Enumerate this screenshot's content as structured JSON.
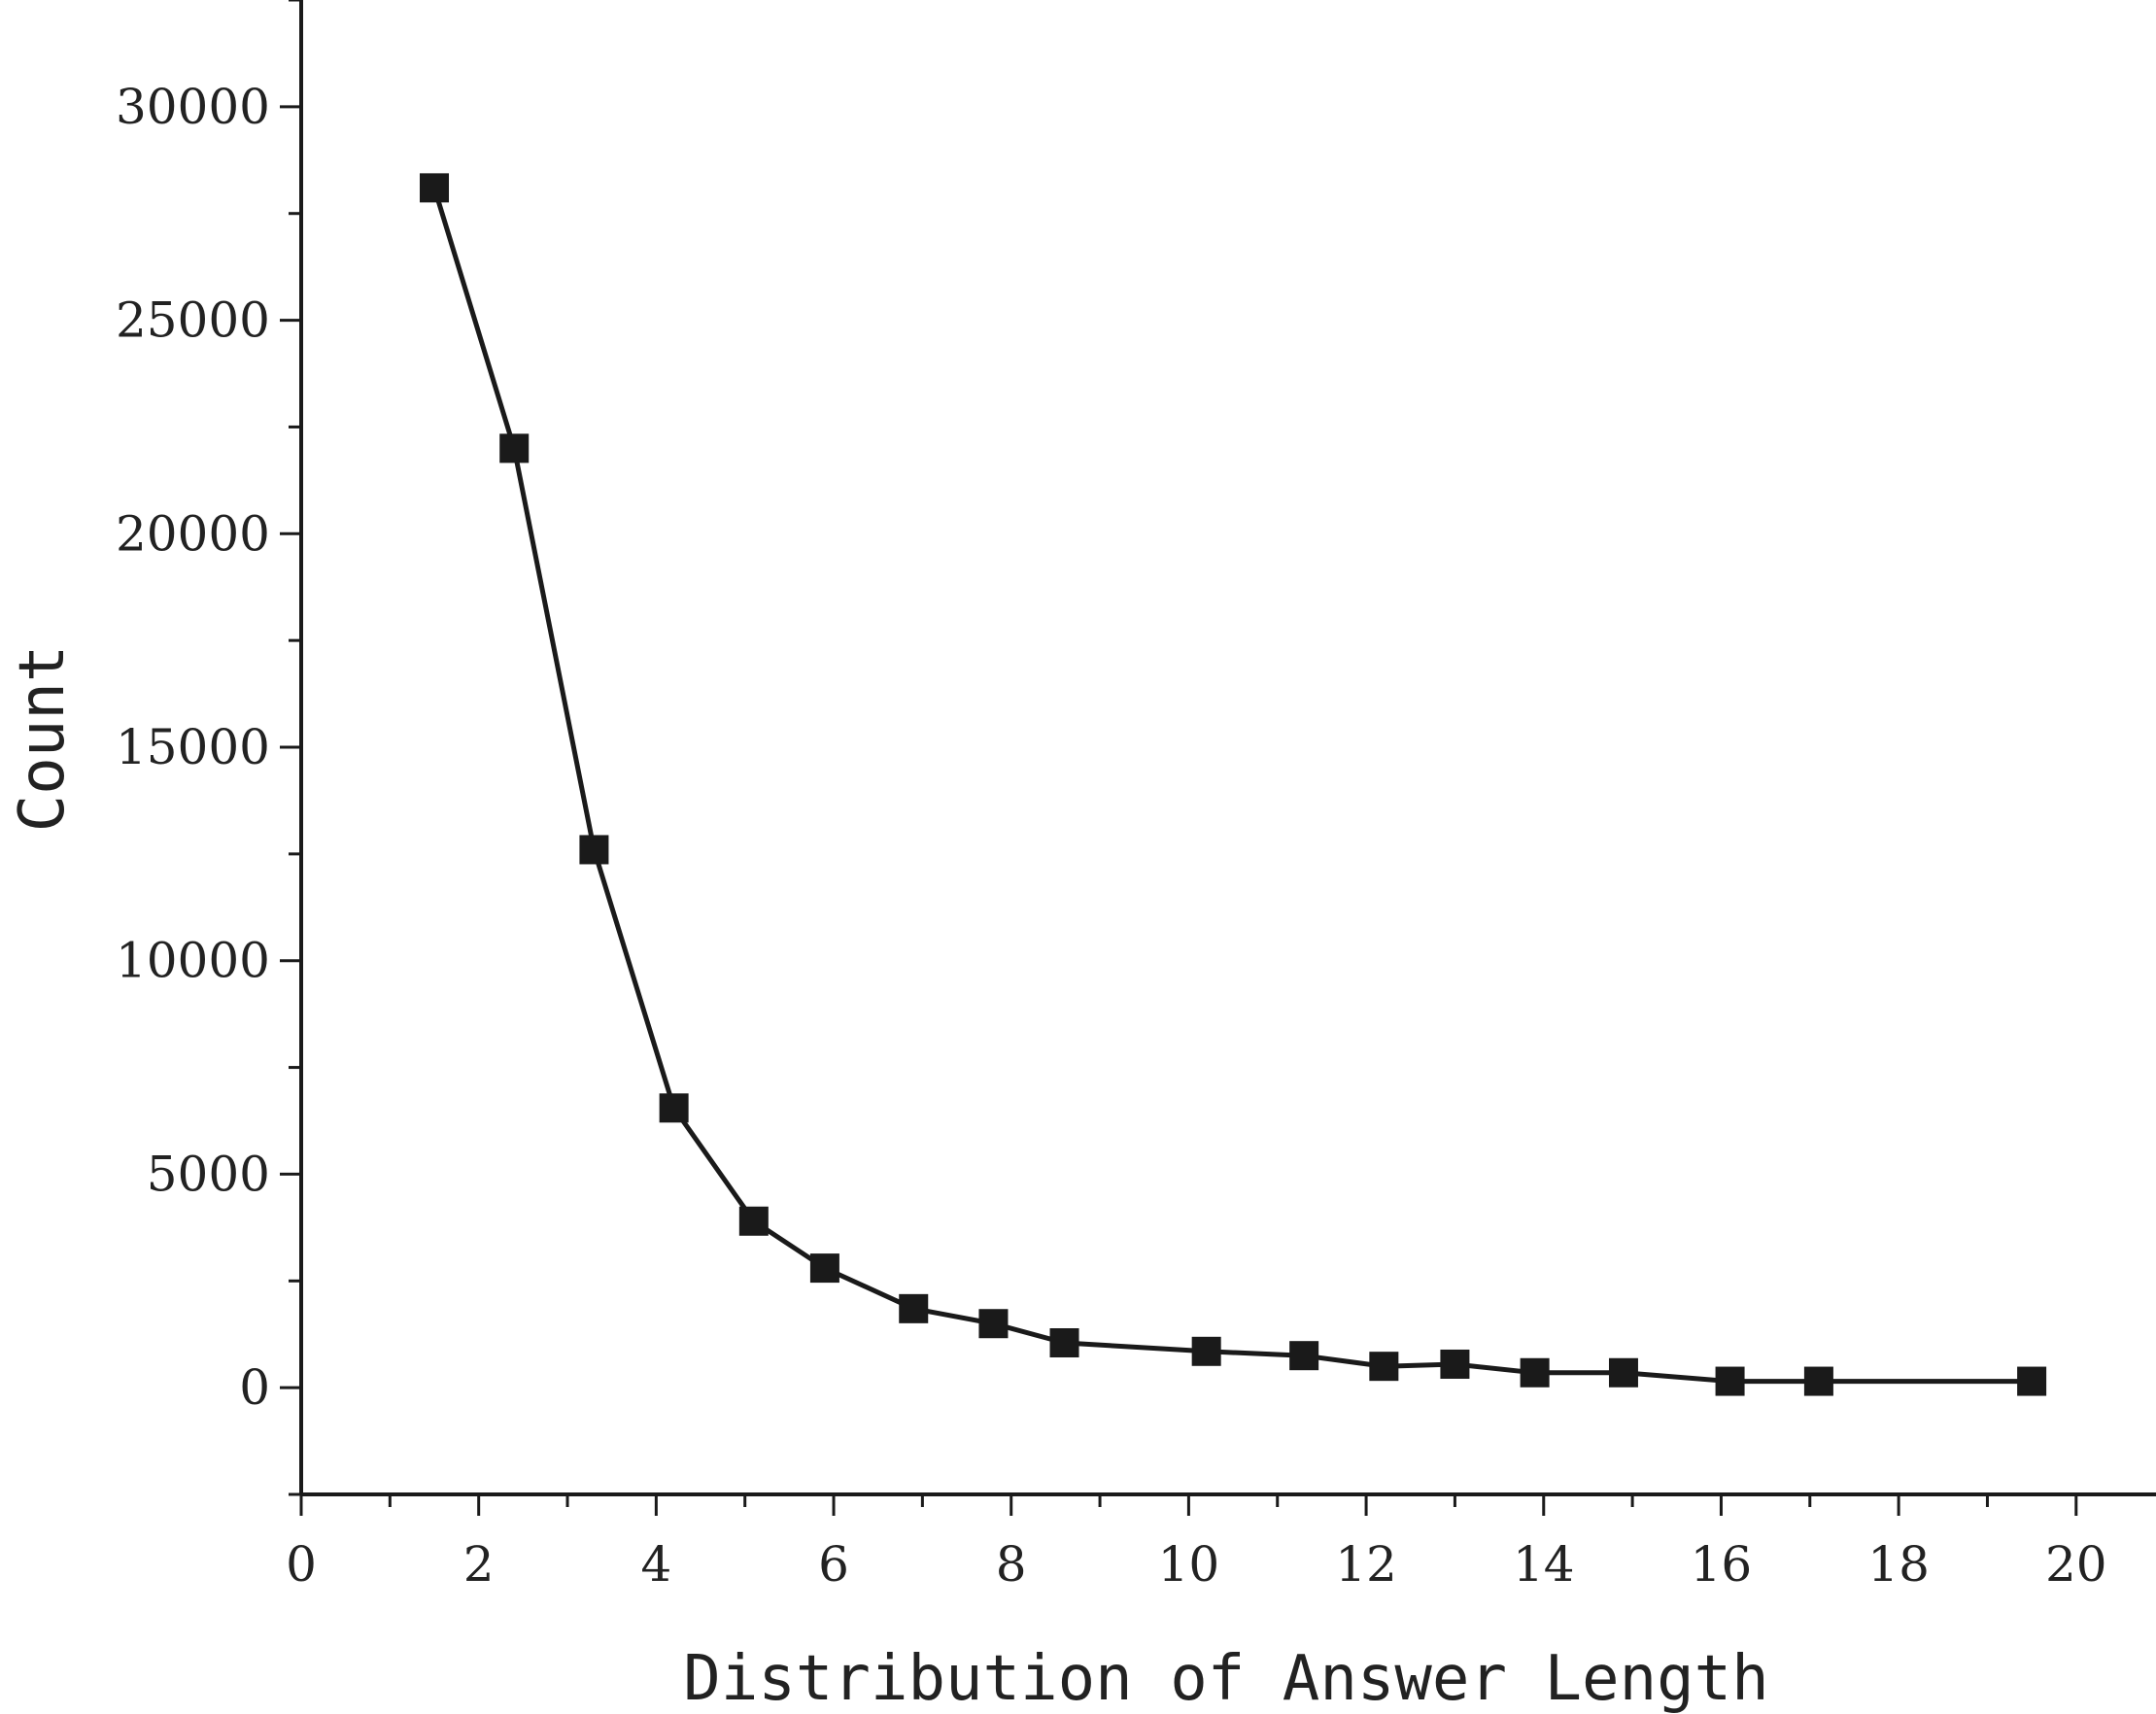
{
  "chart_data": {
    "type": "line",
    "title": "",
    "xlabel": "Distribution of Answer Length",
    "ylabel": "Count",
    "xlim": [
      0,
      20.9
    ],
    "ylim": [
      -2500,
      32500
    ],
    "xticks": [
      0,
      2,
      4,
      6,
      8,
      10,
      12,
      14,
      16,
      18,
      20
    ],
    "xtick_labels": [
      "0",
      "2",
      "4",
      "6",
      "8",
      "10",
      "12",
      "14",
      "16",
      "18",
      "20"
    ],
    "yticks": [
      0,
      5000,
      10000,
      15000,
      20000,
      25000,
      30000
    ],
    "ytick_labels": [
      "0",
      "5000",
      "10000",
      "15000",
      "20000",
      "25000",
      "30000"
    ],
    "grid": false,
    "legend": "none",
    "marker": "square",
    "color": "#1a1a1a",
    "series": [
      {
        "x": [
          1.5,
          2.4,
          3.3,
          4.2,
          5.1,
          5.9,
          6.9,
          7.8,
          8.6,
          10.2,
          11.3,
          12.2,
          13.0,
          13.9,
          14.9,
          16.1,
          17.1,
          19.5
        ],
        "values": [
          28100,
          22000,
          12600,
          6550,
          3900,
          2800,
          1850,
          1500,
          1050,
          850,
          750,
          500,
          550,
          350,
          350,
          150,
          150,
          150
        ]
      }
    ]
  }
}
